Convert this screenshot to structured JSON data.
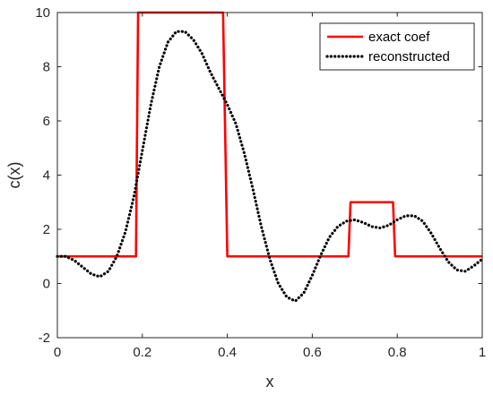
{
  "chart_data": {
    "type": "line",
    "title": "",
    "xlabel": "x",
    "ylabel": "c(x)",
    "xlim": [
      0,
      1
    ],
    "ylim": [
      -2,
      10
    ],
    "xticks": [
      0,
      0.2,
      0.4,
      0.6,
      0.8,
      1
    ],
    "xtick_labels": [
      "0",
      "0.2",
      "0.4",
      "0.6",
      "0.8",
      "1"
    ],
    "yticks": [
      -2,
      0,
      2,
      4,
      6,
      8,
      10
    ],
    "ytick_labels": [
      "-2",
      "0",
      "2",
      "4",
      "6",
      "8",
      "10"
    ],
    "grid": false,
    "legend_position": "top-right",
    "series": [
      {
        "name": "exact coef",
        "color": "#ff0000",
        "style": "solid",
        "x": [
          0,
          0.185,
          0.19,
          0.39,
          0.4,
          0.685,
          0.69,
          0.79,
          0.795,
          1
        ],
        "y": [
          1,
          1,
          10,
          10,
          1,
          1,
          3,
          3,
          1,
          1
        ]
      },
      {
        "name": "reconstructed",
        "color": "#000000",
        "style": "dotted",
        "x": [
          0,
          0.02,
          0.04,
          0.06,
          0.08,
          0.1,
          0.12,
          0.14,
          0.16,
          0.18,
          0.2,
          0.22,
          0.24,
          0.26,
          0.28,
          0.3,
          0.32,
          0.34,
          0.36,
          0.38,
          0.4,
          0.42,
          0.44,
          0.46,
          0.48,
          0.5,
          0.52,
          0.54,
          0.56,
          0.58,
          0.6,
          0.62,
          0.64,
          0.66,
          0.68,
          0.7,
          0.72,
          0.74,
          0.76,
          0.78,
          0.8,
          0.82,
          0.84,
          0.86,
          0.88,
          0.9,
          0.92,
          0.94,
          0.96,
          0.98,
          1
        ],
        "y": [
          1.0,
          1.0,
          0.85,
          0.6,
          0.35,
          0.25,
          0.45,
          1.0,
          1.9,
          3.2,
          4.9,
          6.6,
          8.0,
          8.9,
          9.3,
          9.3,
          9.0,
          8.5,
          7.8,
          7.2,
          6.6,
          5.9,
          4.8,
          3.5,
          2.1,
          0.9,
          0.0,
          -0.5,
          -0.65,
          -0.35,
          0.3,
          1.05,
          1.7,
          2.1,
          2.3,
          2.35,
          2.25,
          2.1,
          2.05,
          2.15,
          2.35,
          2.5,
          2.5,
          2.3,
          1.85,
          1.3,
          0.8,
          0.5,
          0.45,
          0.65,
          0.9
        ]
      }
    ]
  }
}
